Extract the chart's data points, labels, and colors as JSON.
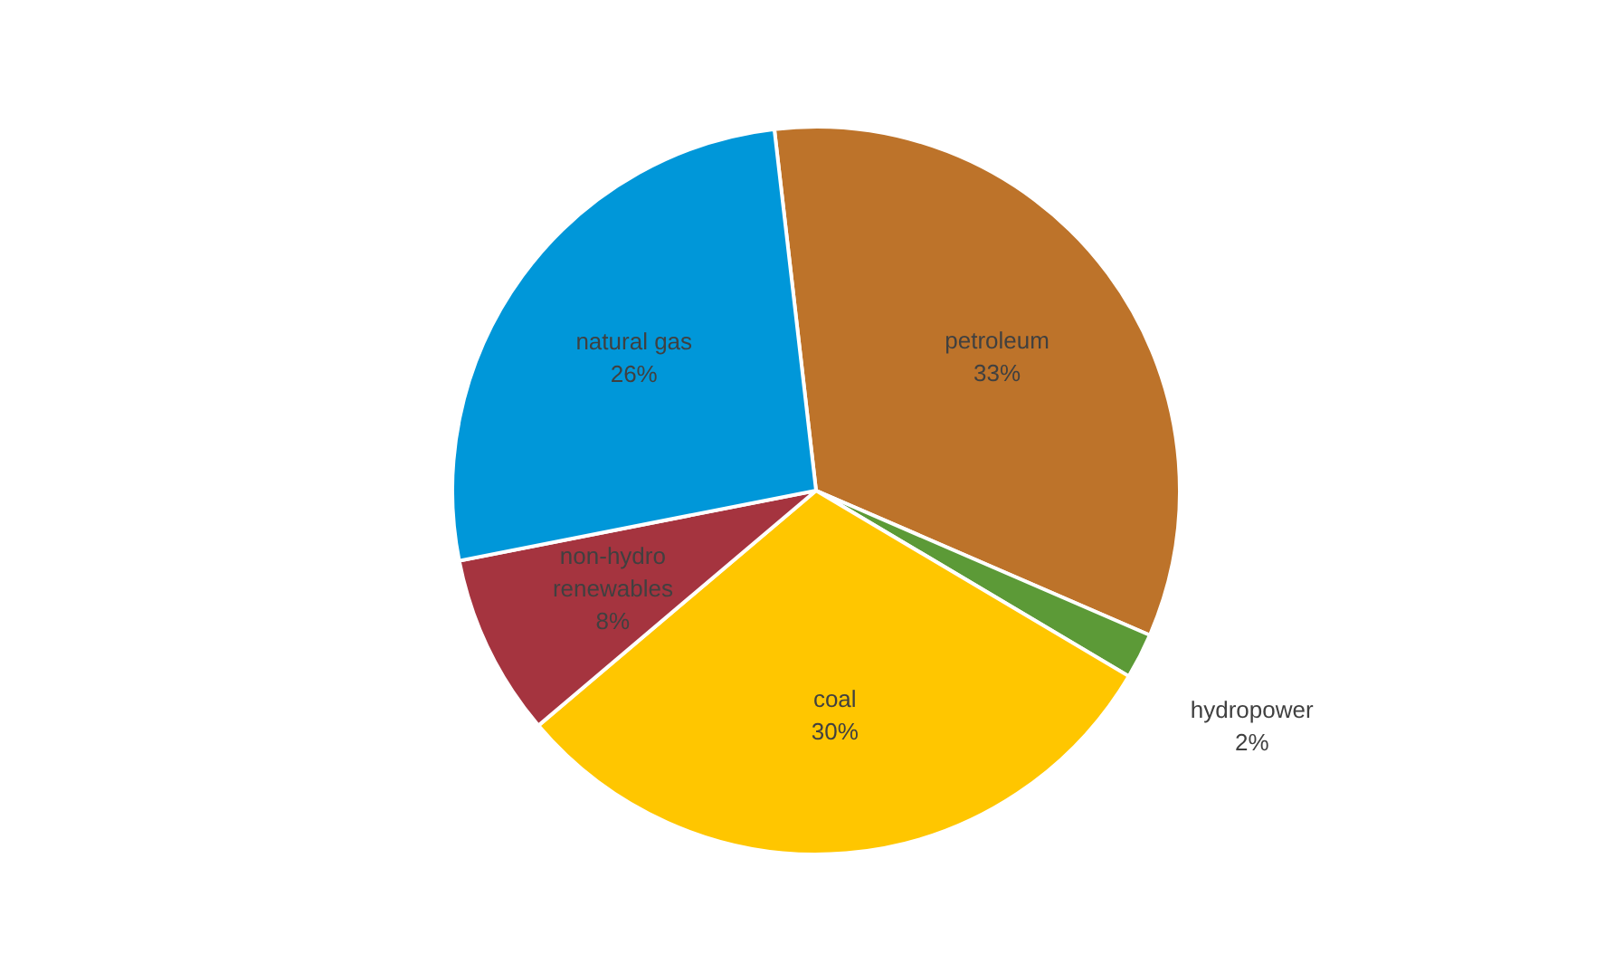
{
  "chart_data": {
    "type": "pie",
    "categories": [
      "petroleum",
      "hydropower",
      "coal",
      "non-hydro renewables",
      "natural gas"
    ],
    "values": [
      33,
      2,
      30,
      8,
      26
    ],
    "colors": [
      "#bd732a",
      "#5c9a37",
      "#ffc600",
      "#a5343f",
      "#0097d9"
    ],
    "value_labels": [
      "33%",
      "2%",
      "30%",
      "8%",
      "26%"
    ]
  }
}
